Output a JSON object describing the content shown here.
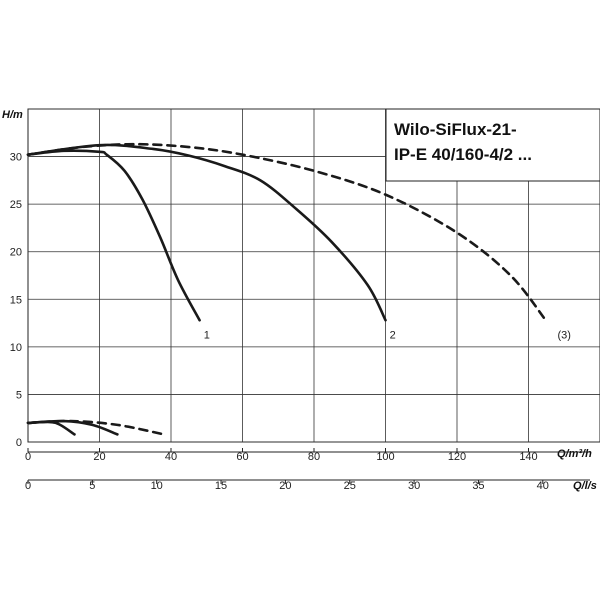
{
  "chart_data": {
    "type": "line",
    "title": [
      "Wilo-SiFlux-21-",
      "IP-E 40/160-4/2 ..."
    ],
    "ylabel": "H/m",
    "xlabel": "Q/m³/h",
    "x2label": "Q/l/s",
    "x_ticks": [
      0,
      20,
      40,
      60,
      80,
      100,
      120,
      140
    ],
    "x2_ticks": [
      0,
      5,
      10,
      15,
      20,
      25,
      30,
      35,
      40
    ],
    "y_ticks": [
      0,
      5,
      10,
      15,
      20,
      25,
      30
    ],
    "xlim": [
      0,
      160
    ],
    "ylim": [
      0,
      35
    ],
    "grid": true,
    "series": [
      {
        "name": "1",
        "style": "solid",
        "points": [
          [
            0,
            30.2
          ],
          [
            10,
            30.6
          ],
          [
            20,
            30.5
          ],
          [
            22,
            30.2
          ],
          [
            27,
            28.5
          ],
          [
            32,
            25.5
          ],
          [
            37,
            21.5
          ],
          [
            42,
            17
          ],
          [
            48,
            12.8
          ]
        ],
        "label_at": [
          50,
          11.3
        ]
      },
      {
        "name": "2",
        "style": "solid",
        "points": [
          [
            0,
            30.2
          ],
          [
            20,
            31.2
          ],
          [
            35,
            30.8
          ],
          [
            45,
            30.1
          ],
          [
            55,
            29
          ],
          [
            65,
            27.5
          ],
          [
            75,
            24.5
          ],
          [
            85,
            21
          ],
          [
            95,
            16.5
          ],
          [
            100,
            12.8
          ]
        ],
        "label_at": [
          102,
          11.3
        ]
      },
      {
        "name": "(3)",
        "style": "dashed",
        "points": [
          [
            0,
            30.2
          ],
          [
            15,
            31
          ],
          [
            30,
            31.3
          ],
          [
            45,
            31
          ],
          [
            60,
            30.2
          ],
          [
            80,
            28.5
          ],
          [
            100,
            26
          ],
          [
            120,
            22
          ],
          [
            135,
            17.5
          ],
          [
            145,
            12.7
          ]
        ],
        "label_at": [
          150,
          11.3
        ]
      },
      {
        "name": "",
        "style": "solid",
        "points": [
          [
            0,
            2.0
          ],
          [
            6,
            2.1
          ],
          [
            9,
            1.8
          ],
          [
            13,
            0.8
          ]
        ]
      },
      {
        "name": "",
        "style": "solid",
        "points": [
          [
            0,
            2.0
          ],
          [
            10,
            2.2
          ],
          [
            18,
            1.8
          ],
          [
            25,
            0.8
          ]
        ]
      },
      {
        "name": "",
        "style": "dashed",
        "points": [
          [
            0,
            2.0
          ],
          [
            12,
            2.2
          ],
          [
            25,
            1.8
          ],
          [
            38,
            0.8
          ]
        ]
      }
    ]
  }
}
